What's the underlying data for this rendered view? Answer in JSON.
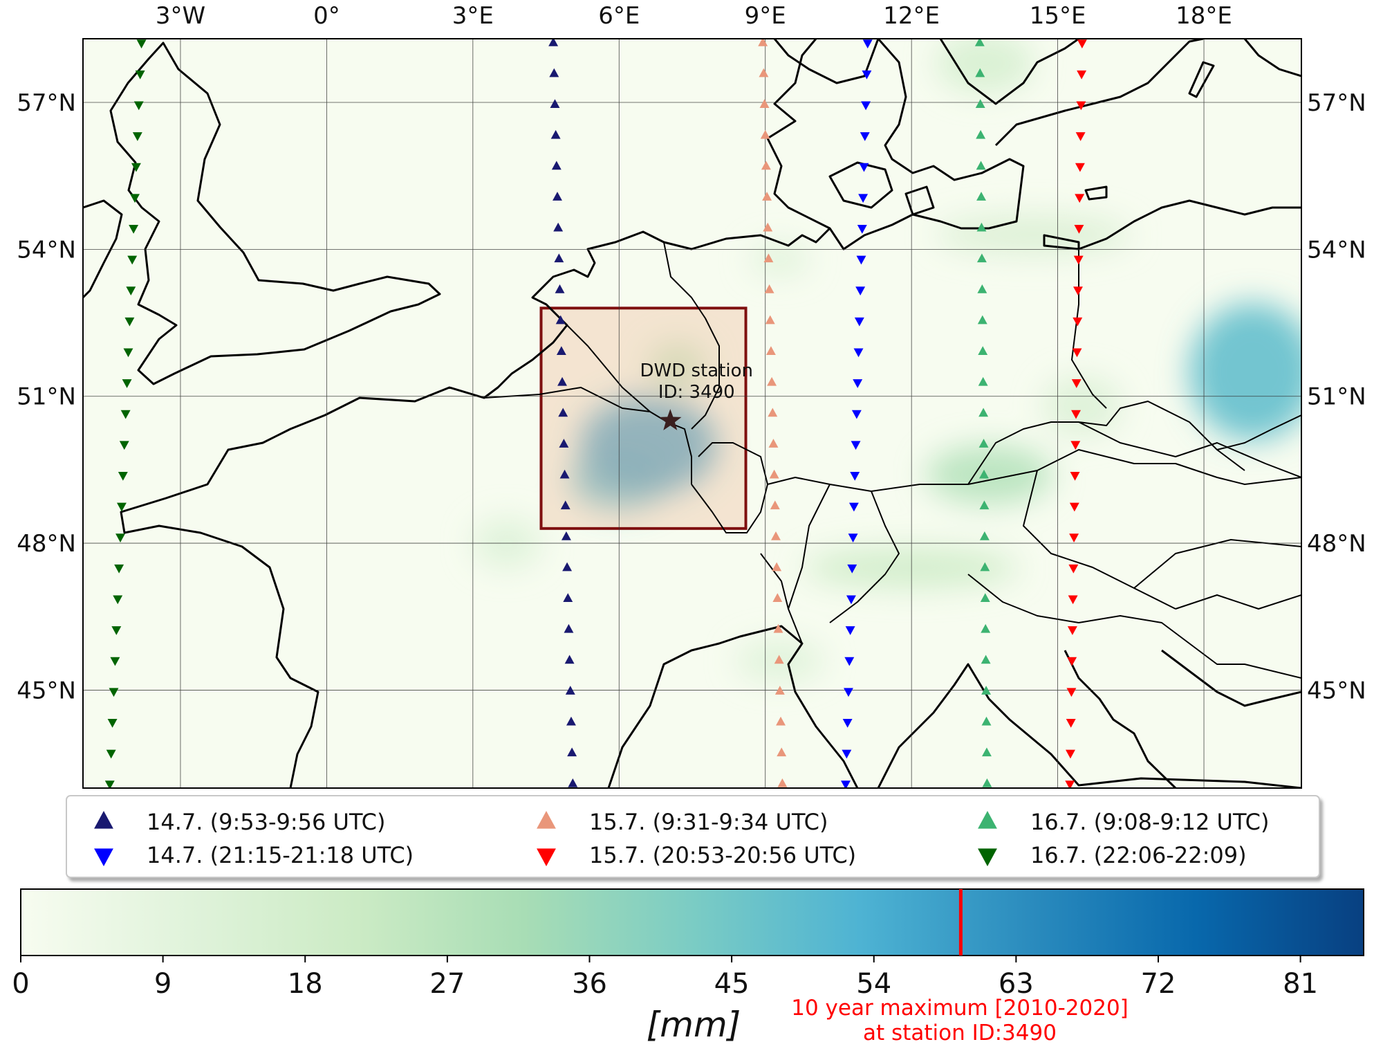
{
  "map": {
    "lon_range": [
      -5,
      20
    ],
    "lat_range": [
      43,
      58.3
    ],
    "lon_ticks": [
      {
        "value": -3,
        "label": "3°W"
      },
      {
        "value": 0,
        "label": "0°"
      },
      {
        "value": 3,
        "label": "3°E"
      },
      {
        "value": 6,
        "label": "6°E"
      },
      {
        "value": 9,
        "label": "9°E"
      },
      {
        "value": 12,
        "label": "12°E"
      },
      {
        "value": 15,
        "label": "15°E"
      },
      {
        "value": 18,
        "label": "18°E"
      }
    ],
    "lat_ticks": [
      {
        "value": 57,
        "label": "57°N"
      },
      {
        "value": 54,
        "label": "54°N"
      },
      {
        "value": 51,
        "label": "51°N"
      },
      {
        "value": 48,
        "label": "48°N"
      },
      {
        "value": 45,
        "label": "45°N"
      }
    ],
    "grid": true,
    "study_box": {
      "lon_min": 4.4,
      "lon_max": 8.6,
      "lat_min": 48.3,
      "lat_max": 52.8,
      "color": "#7f0f0f"
    },
    "station": {
      "lon": 7.05,
      "lat": 50.5,
      "label_line1": "DWD station",
      "label_line2": "ID: 3490",
      "marker_color": "#3a1f1f"
    },
    "precip_blobs": [
      {
        "lon": 6.6,
        "lat": 50.0,
        "rlon": 1.4,
        "rlat": 1.0,
        "value": 60
      },
      {
        "lon": 6.0,
        "lat": 49.3,
        "rlon": 1.0,
        "rlat": 0.6,
        "value": 50
      },
      {
        "lon": 7.2,
        "lat": 51.6,
        "rlon": 0.6,
        "rlat": 0.5,
        "value": 25
      },
      {
        "lon": 19.0,
        "lat": 51.5,
        "rlon": 1.3,
        "rlat": 1.4,
        "value": 48
      },
      {
        "lon": 13.6,
        "lat": 49.4,
        "rlon": 1.3,
        "rlat": 0.6,
        "value": 28
      },
      {
        "lon": 12.0,
        "lat": 47.5,
        "rlon": 2.2,
        "rlat": 0.4,
        "value": 20
      },
      {
        "lon": 14.5,
        "lat": 54.3,
        "rlon": 2.0,
        "rlat": 0.4,
        "value": 14
      },
      {
        "lon": 9.3,
        "lat": 53.8,
        "rlon": 0.6,
        "rlat": 0.3,
        "value": 12
      },
      {
        "lon": 13.5,
        "lat": 57.8,
        "rlon": 1.0,
        "rlat": 0.6,
        "value": 16
      },
      {
        "lon": 3.7,
        "lat": 48.0,
        "rlon": 0.7,
        "rlat": 0.5,
        "value": 12
      },
      {
        "lon": 15.5,
        "lat": 50.8,
        "rlon": 0.8,
        "rlat": 0.6,
        "value": 13
      },
      {
        "lon": 9.3,
        "lat": 45.6,
        "rlon": 0.9,
        "rlat": 0.4,
        "value": 12
      }
    ],
    "overpasses": [
      {
        "id": "14.7-am",
        "label": "14.7. (9:53-9:56 UTC)",
        "color": "#191970",
        "direction": "up",
        "lon_south": 5.05,
        "lon_north": 4.65
      },
      {
        "id": "14.7-pm",
        "label": "14.7. (21:15-21:18 UTC)",
        "color": "#0000ff",
        "direction": "down",
        "lon_south": 10.65,
        "lon_north": 11.1
      },
      {
        "id": "15.7-am",
        "label": "15.7. (9:31-9:34 UTC)",
        "color": "#e9967a",
        "direction": "up",
        "lon_south": 9.35,
        "lon_north": 8.95
      },
      {
        "id": "15.7-pm",
        "label": "15.7. (20:53-20:56 UTC)",
        "color": "#ff0000",
        "direction": "down",
        "lon_south": 15.25,
        "lon_north": 15.5
      },
      {
        "id": "16.7-am",
        "label": "16.7. (9:08-9:12 UTC)",
        "color": "#3cb371",
        "direction": "up",
        "lon_south": 13.55,
        "lon_north": 13.4
      },
      {
        "id": "16.7-pm",
        "label": "16.7. (22:06-22:09)",
        "color": "#006400",
        "direction": "down",
        "lon_south": -4.45,
        "lon_north": -3.8
      }
    ]
  },
  "legend": {
    "entries": [
      {
        "label": "14.7. (9:53-9:56 UTC)",
        "color": "#191970",
        "marker": "up"
      },
      {
        "label": "14.7. (21:15-21:18 UTC)",
        "color": "#0000ff",
        "marker": "down"
      },
      {
        "label": "15.7. (9:31-9:34 UTC)",
        "color": "#e9967a",
        "marker": "up"
      },
      {
        "label": "15.7. (20:53-20:56 UTC)",
        "color": "#ff0000",
        "marker": "down"
      },
      {
        "label": "16.7. (9:08-9:12 UTC)",
        "color": "#3cb371",
        "marker": "up"
      },
      {
        "label": "16.7. (22:06-22:09)",
        "color": "#006400",
        "marker": "down"
      }
    ]
  },
  "colorbar": {
    "min": 0,
    "max": 85,
    "ticks": [
      "0",
      "9",
      "18",
      "27",
      "36",
      "45",
      "54",
      "63",
      "72",
      "81"
    ],
    "tick_values": [
      0,
      9,
      18,
      27,
      36,
      45,
      54,
      63,
      72,
      81
    ],
    "label": "[mm]",
    "colormap_stops": [
      "#f7fcf0",
      "#e0f3db",
      "#ccebc5",
      "#a8ddb5",
      "#7bccc4",
      "#4eb3d3",
      "#2b8cbe",
      "#0868ac",
      "#084081"
    ],
    "marker_value": 59.5,
    "marker_color": "#ff0000",
    "marker_label_line1": "10 year maximum [2010-2020]",
    "marker_label_line2": "at station ID:3490"
  }
}
